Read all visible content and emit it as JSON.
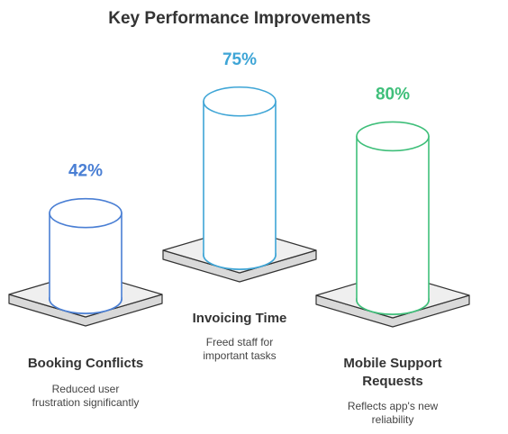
{
  "chart_data": {
    "type": "cylinder",
    "title": "Key Performance Improvements",
    "categories": [
      [
        "Booking Conflicts"
      ],
      [
        "Invoicing Time"
      ],
      [
        "Mobile Support",
        "Requests"
      ]
    ],
    "values": [
      42,
      75,
      80
    ],
    "value_labels": [
      "42%",
      "75%",
      "80%"
    ],
    "descriptions": [
      [
        "Reduced user",
        "frustration significantly"
      ],
      [
        "Freed staff for",
        "important tasks"
      ],
      [
        "Reflects app's new",
        "reliability"
      ]
    ],
    "colors": [
      "#4a7fd4",
      "#3ea5d6",
      "#3fbf7a"
    ]
  }
}
